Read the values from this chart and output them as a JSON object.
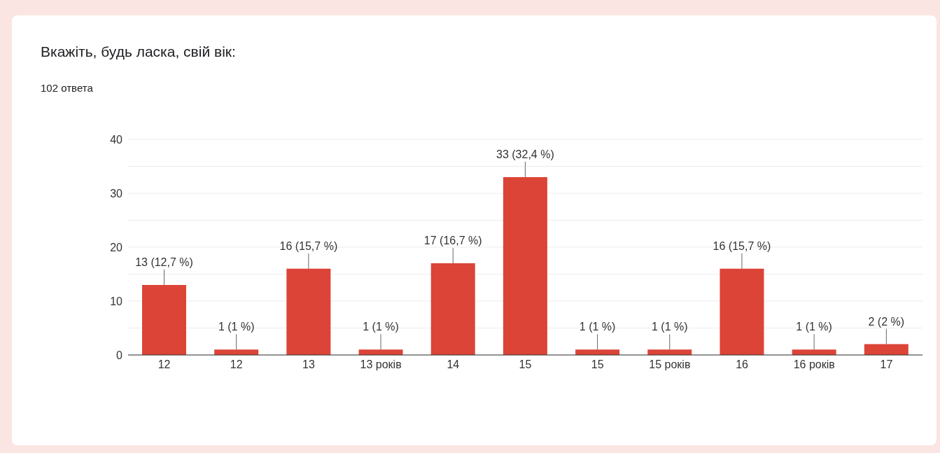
{
  "chart_data": {
    "type": "bar",
    "title": "Вкажіть, будь ласка, свій вік:",
    "subtitle": "102 ответа",
    "categories": [
      "12",
      "12",
      "13",
      "13 років",
      "14",
      "15",
      "15",
      "15 років",
      "16",
      "16 років",
      "17"
    ],
    "values": [
      13,
      1,
      16,
      1,
      17,
      33,
      1,
      1,
      16,
      1,
      2
    ],
    "value_labels": [
      "13 (12,7 %)",
      "1 (1 %)",
      "16 (15,7 %)",
      "1 (1 %)",
      "17 (16,7 %)",
      "33 (32,4 %)",
      "1 (1 %)",
      "1 (1 %)",
      "16 (15,7 %)",
      "1 (1 %)",
      "2 (2 %)"
    ],
    "color": "#db4437",
    "ylim": [
      0,
      40
    ],
    "yticks": [
      0,
      {
        "value": 5,
        "label": null
      },
      10,
      {
        "value": 15,
        "label": null
      },
      20,
      {
        "value": 25,
        "label": null
      },
      30,
      {
        "value": 35,
        "label": null
      },
      40
    ],
    "grid": "y",
    "legend": false
  }
}
